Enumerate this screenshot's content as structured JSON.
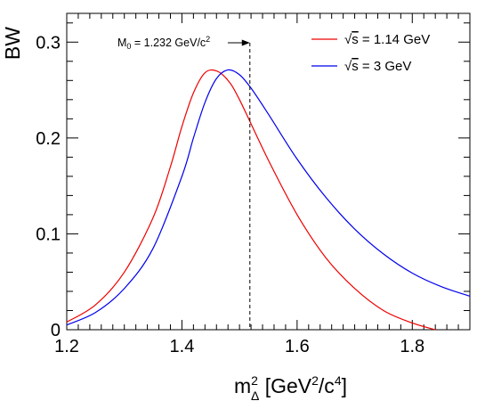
{
  "chart_data": {
    "type": "line",
    "ylabel": "BW",
    "xlabel_parts": {
      "m": "m",
      "sup": "2",
      "sub": "Δ",
      "unit_open": " [GeV",
      "unit_sup1": "2",
      "unit_mid": "/c",
      "unit_sup2": "4",
      "unit_close": "]"
    },
    "xlim": [
      1.2,
      1.9
    ],
    "ylim": [
      0,
      0.33
    ],
    "x_ticks": [
      1.2,
      1.4,
      1.6,
      1.8
    ],
    "x_tick_labels": [
      "1.2",
      "1.4",
      "1.6",
      "1.8"
    ],
    "y_ticks": [
      0,
      0.1,
      0.2,
      0.3
    ],
    "y_tick_labels": [
      "0",
      "0.1",
      "0.2",
      "0.3"
    ],
    "grid": false,
    "legend_position": "top-right",
    "series": [
      {
        "name": "√s = 1.14 GeV",
        "legend_parts": {
          "radical": "√",
          "over": "s",
          "rest": " = 1.14 GeV"
        },
        "color": "#ee0000",
        "x": [
          1.2,
          1.25,
          1.3,
          1.35,
          1.38,
          1.4,
          1.42,
          1.44,
          1.46,
          1.48,
          1.5,
          1.55,
          1.6,
          1.65,
          1.7,
          1.75,
          1.8,
          1.84
        ],
        "y": [
          0.008,
          0.026,
          0.06,
          0.117,
          0.17,
          0.212,
          0.247,
          0.268,
          0.27,
          0.26,
          0.24,
          0.177,
          0.12,
          0.075,
          0.043,
          0.02,
          0.007,
          0.0
        ]
      },
      {
        "name": "√s = 3 GeV",
        "legend_parts": {
          "radical": "√",
          "over": "s",
          "rest": " = 3 GeV"
        },
        "color": "#0000ee",
        "x": [
          1.2,
          1.25,
          1.3,
          1.35,
          1.4,
          1.42,
          1.44,
          1.46,
          1.48,
          1.5,
          1.52,
          1.55,
          1.6,
          1.65,
          1.7,
          1.75,
          1.8,
          1.85,
          1.9
        ],
        "y": [
          0.005,
          0.018,
          0.043,
          0.085,
          0.16,
          0.2,
          0.237,
          0.262,
          0.271,
          0.266,
          0.252,
          0.225,
          0.178,
          0.138,
          0.105,
          0.079,
          0.059,
          0.045,
          0.035
        ]
      }
    ],
    "annotation": {
      "text_prefix": "M",
      "text_sub": "0",
      "text_main": " = 1.232 GeV/c",
      "text_sup": "2",
      "marker_x": 1.518
    }
  }
}
